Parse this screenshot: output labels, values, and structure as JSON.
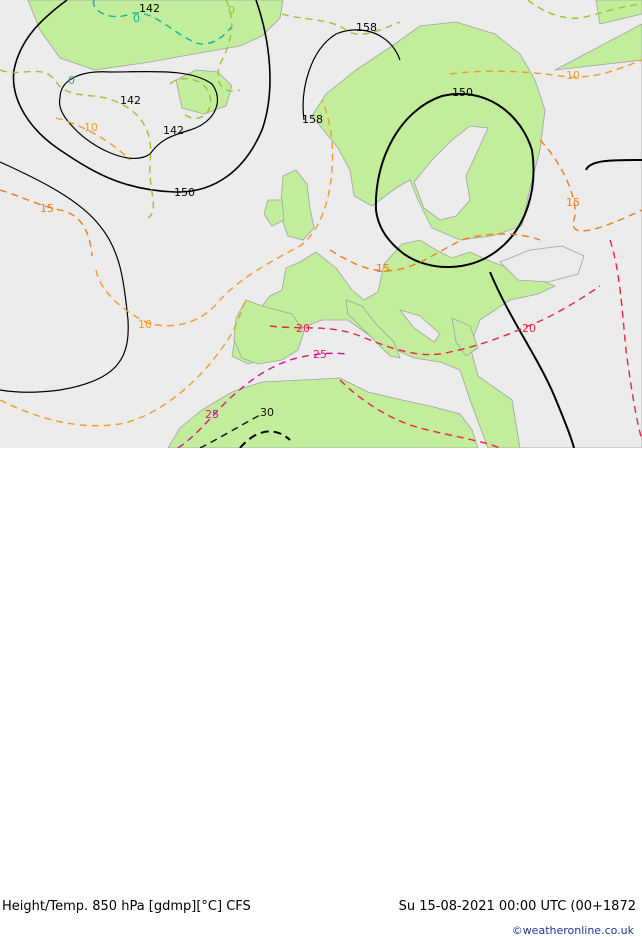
{
  "map": {
    "colors": {
      "sea": "#ececec",
      "land": "#c2ee9c",
      "coast": "#a2a2a2",
      "height": "#000000",
      "temp_cold": "#10b39a",
      "temp_0": "#9ac433",
      "temp_10": "#ef9a2c",
      "temp_15": "#ee7c17",
      "temp_20": "#ec2340",
      "temp_25": "#e0108c",
      "temp_30": "#111111"
    },
    "height_labels": [
      "142",
      "142",
      "142",
      "150",
      "150",
      "158",
      "158"
    ],
    "temp_labels": [
      "0",
      "0",
      "0",
      "10",
      "10",
      "10",
      "15",
      "15",
      "15",
      "20",
      "20",
      "25",
      "25",
      "30"
    ]
  },
  "footer": {
    "title": "Height/Temp. 850 hPa [gdmp][°C] CFS",
    "run": "Su 15-08-2021 00:00 UTC (00+1872",
    "credit": "©weatheronline.co.uk"
  }
}
